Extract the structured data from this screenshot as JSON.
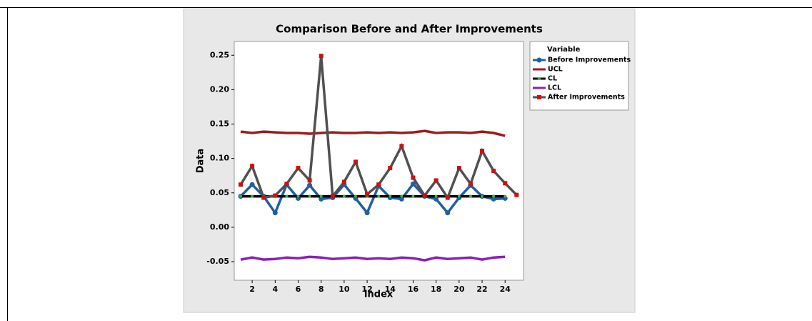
{
  "chart_data": {
    "type": "line",
    "title": "Comparison Before and After Improvements",
    "x_label": "Index",
    "y_label": "Data",
    "legend_title": "Variable",
    "legend": "right",
    "xlim": [
      0.44,
      25.6
    ],
    "ylim": [
      -0.077,
      0.27
    ],
    "xticks": [
      2,
      4,
      6,
      8,
      10,
      12,
      14,
      16,
      18,
      20,
      22,
      24
    ],
    "yticks": [
      -0.05,
      {
        "value": 0,
        "label": "0.00"
      },
      0.05,
      {
        "value": 0.1,
        "label": "0.10"
      },
      0.15,
      {
        "value": 0.2,
        "label": "0.20"
      },
      0.25
    ],
    "series": [
      {
        "name": "Before Improvements",
        "color": "#1f5fa3",
        "marker": "circle",
        "x": [
          1,
          2,
          3,
          4,
          5,
          6,
          7,
          8,
          9,
          10,
          11,
          12,
          13,
          14,
          15,
          16,
          17,
          18,
          19,
          20,
          21,
          22,
          23,
          24
        ],
        "values": [
          0.045,
          0.062,
          0.045,
          0.021,
          0.062,
          0.042,
          0.061,
          0.041,
          0.043,
          0.062,
          0.042,
          0.021,
          0.06,
          0.043,
          0.041,
          0.063,
          0.045,
          0.041,
          0.021,
          0.043,
          0.061,
          0.045,
          0.041,
          0.042
        ]
      },
      {
        "name": "UCL",
        "color": "#9b1c1c",
        "marker": "none",
        "x": [
          1,
          2,
          3,
          4,
          5,
          6,
          7,
          8,
          9,
          10,
          11,
          12,
          13,
          14,
          15,
          16,
          17,
          18,
          19,
          20,
          21,
          22,
          23,
          24
        ],
        "values": [
          0.139,
          0.137,
          0.139,
          0.138,
          0.137,
          0.137,
          0.136,
          0.137,
          0.138,
          0.137,
          0.137,
          0.138,
          0.137,
          0.138,
          0.137,
          0.138,
          0.14,
          0.137,
          0.138,
          0.138,
          0.137,
          0.139,
          0.137,
          0.133
        ]
      },
      {
        "name": "CL",
        "color": "#000000",
        "marker": "dot",
        "x": [
          1,
          2,
          3,
          4,
          5,
          6,
          7,
          8,
          9,
          10,
          11,
          12,
          13,
          14,
          15,
          16,
          17,
          18,
          19,
          20,
          21,
          22,
          23,
          24
        ],
        "values": [
          0.045,
          0.045,
          0.045,
          0.045,
          0.045,
          0.045,
          0.045,
          0.045,
          0.045,
          0.045,
          0.045,
          0.045,
          0.045,
          0.045,
          0.045,
          0.045,
          0.045,
          0.045,
          0.045,
          0.045,
          0.045,
          0.045,
          0.045,
          0.045
        ]
      },
      {
        "name": "LCL",
        "color": "#8b1fb8",
        "marker": "none",
        "x": [
          1,
          2,
          3,
          4,
          5,
          6,
          7,
          8,
          9,
          10,
          11,
          12,
          13,
          14,
          15,
          16,
          17,
          18,
          19,
          20,
          21,
          22,
          23,
          24
        ],
        "values": [
          -0.047,
          -0.044,
          -0.047,
          -0.046,
          -0.044,
          -0.045,
          -0.043,
          -0.044,
          -0.046,
          -0.045,
          -0.044,
          -0.046,
          -0.045,
          -0.046,
          -0.044,
          -0.045,
          -0.048,
          -0.044,
          -0.046,
          -0.045,
          -0.044,
          -0.047,
          -0.044,
          -0.043
        ]
      },
      {
        "name": "After Improvements",
        "color": "#505050",
        "marker": "square",
        "x": [
          1,
          2,
          3,
          4,
          5,
          6,
          7,
          8,
          9,
          10,
          11,
          12,
          13,
          14,
          15,
          16,
          17,
          18,
          19,
          20,
          21,
          22,
          23,
          24,
          25
        ],
        "values": [
          0.062,
          0.089,
          0.043,
          0.046,
          0.063,
          0.086,
          0.068,
          0.249,
          0.045,
          0.066,
          0.095,
          0.048,
          0.062,
          0.086,
          0.118,
          0.072,
          0.046,
          0.068,
          0.043,
          0.086,
          0.063,
          0.111,
          0.082,
          0.064,
          0.047
        ]
      }
    ]
  }
}
